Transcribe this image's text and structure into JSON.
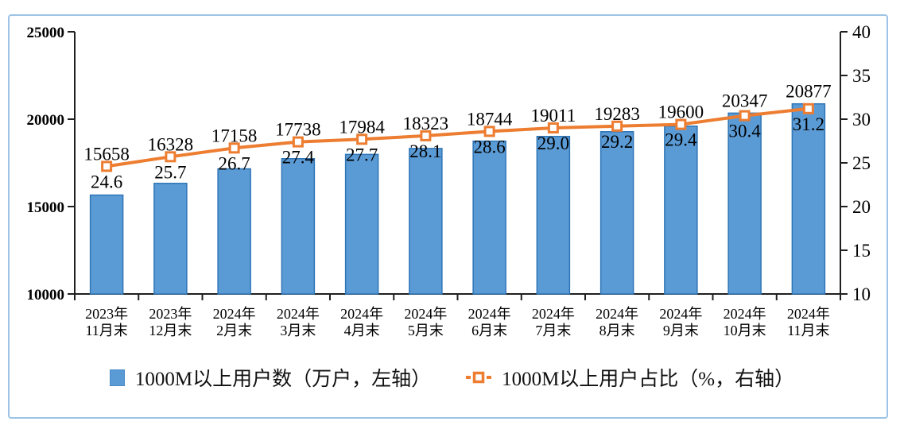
{
  "chart_data": {
    "type": "bar+line",
    "categories": [
      {
        "line1": "2023年",
        "line2": "11月末"
      },
      {
        "line1": "2023年",
        "line2": "12月末"
      },
      {
        "line1": "2024年",
        "line2": "2月末"
      },
      {
        "line1": "2024年",
        "line2": "3月末"
      },
      {
        "line1": "2024年",
        "line2": "4月末"
      },
      {
        "line1": "2024年",
        "line2": "5月末"
      },
      {
        "line1": "2024年",
        "line2": "6月末"
      },
      {
        "line1": "2024年",
        "line2": "7月末"
      },
      {
        "line1": "2024年",
        "line2": "8月末"
      },
      {
        "line1": "2024年",
        "line2": "9月末"
      },
      {
        "line1": "2024年",
        "line2": "10月末"
      },
      {
        "line1": "2024年",
        "line2": "11月末"
      }
    ],
    "series": [
      {
        "name": "1000M以上用户数（万户，左轴）",
        "type": "bar",
        "axis": "left",
        "values": [
          15658,
          16328,
          17158,
          17738,
          17984,
          18323,
          18744,
          19011,
          19283,
          19600,
          20347,
          20877
        ],
        "fill": "#5B9BD5",
        "stroke": "#2E75B6"
      },
      {
        "name": "1000M以上用户占比（%，右轴）",
        "type": "line",
        "axis": "right",
        "values": [
          24.6,
          25.7,
          26.7,
          27.4,
          27.7,
          28.1,
          28.6,
          29.0,
          29.2,
          29.4,
          30.4,
          31.2
        ],
        "color": "#ED7D31",
        "marker": "open-square"
      }
    ],
    "axes": {
      "left": {
        "min": 10000,
        "max": 25000,
        "ticks": [
          "10000",
          "15000",
          "20000",
          "25000"
        ]
      },
      "right": {
        "min": 10,
        "max": 40,
        "ticks": [
          "10",
          "15",
          "20",
          "25",
          "30",
          "35",
          "40"
        ]
      }
    },
    "grid": false,
    "legend_position": "bottom"
  },
  "colors": {
    "frame_border": "#9DC3E6",
    "axis_line": "#1f1f1f",
    "x_label": "#404040",
    "bar_fill": "#5B9BD5",
    "bar_stroke": "#2E75B6",
    "line_orange": "#ED7D31"
  }
}
